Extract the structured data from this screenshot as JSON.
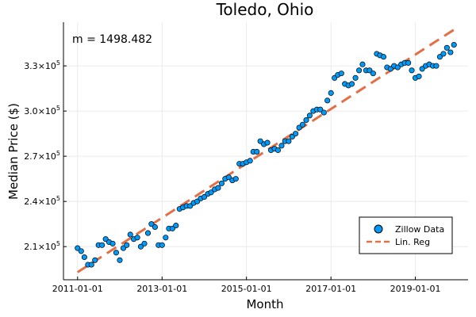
{
  "chart_data": {
    "type": "scatter",
    "title": "Toledo, Ohio",
    "xlabel": "Month",
    "ylabel": "Median Price ($)",
    "annotation": "m = 1498.482",
    "x_ticks": [
      "2011-01-01",
      "2013-01-01",
      "2015-01-01",
      "2017-01-01",
      "2019-01-01"
    ],
    "y_ticks": [
      {
        "value": 210000,
        "mantissa": "2.1",
        "exp": "5"
      },
      {
        "value": 240000,
        "mantissa": "2.4",
        "exp": "5"
      },
      {
        "value": 270000,
        "mantissa": "2.7",
        "exp": "5"
      },
      {
        "value": 300000,
        "mantissa": "3.0",
        "exp": "5"
      },
      {
        "value": 330000,
        "mantissa": "3.3",
        "exp": "5"
      }
    ],
    "times_sign": "×10",
    "xlim": [
      "2010-09-01",
      "2020-04-01"
    ],
    "ylim": [
      188000,
      359000
    ],
    "grid": true,
    "legend_position": "bottom-right",
    "colors": {
      "scatter": "#009AF9",
      "regression": "#E26F46"
    },
    "series": [
      {
        "name": "Zillow Data",
        "kind": "scatter",
        "x": [
          "2011-01-01",
          "2011-02-01",
          "2011-03-01",
          "2011-04-01",
          "2011-05-01",
          "2011-06-01",
          "2011-07-01",
          "2011-08-01",
          "2011-09-01",
          "2011-10-01",
          "2011-11-01",
          "2011-12-01",
          "2012-01-01",
          "2012-02-01",
          "2012-03-01",
          "2012-04-01",
          "2012-05-01",
          "2012-06-01",
          "2012-07-01",
          "2012-08-01",
          "2012-09-01",
          "2012-10-01",
          "2012-11-01",
          "2012-12-01",
          "2013-01-01",
          "2013-02-01",
          "2013-03-01",
          "2013-04-01",
          "2013-05-01",
          "2013-06-01",
          "2013-07-01",
          "2013-08-01",
          "2013-09-01",
          "2013-10-01",
          "2013-11-01",
          "2013-12-01",
          "2014-01-01",
          "2014-02-01",
          "2014-03-01",
          "2014-04-01",
          "2014-05-01",
          "2014-06-01",
          "2014-07-01",
          "2014-08-01",
          "2014-09-01",
          "2014-10-01",
          "2014-11-01",
          "2014-12-01",
          "2015-01-01",
          "2015-02-01",
          "2015-03-01",
          "2015-04-01",
          "2015-05-01",
          "2015-06-01",
          "2015-07-01",
          "2015-08-01",
          "2015-09-01",
          "2015-10-01",
          "2015-11-01",
          "2015-12-01",
          "2016-01-01",
          "2016-02-01",
          "2016-03-01",
          "2016-04-01",
          "2016-05-01",
          "2016-06-01",
          "2016-07-01",
          "2016-08-01",
          "2016-09-01",
          "2016-10-01",
          "2016-11-01",
          "2016-12-01",
          "2017-01-01",
          "2017-02-01",
          "2017-03-01",
          "2017-04-01",
          "2017-05-01",
          "2017-06-01",
          "2017-07-01",
          "2017-08-01",
          "2017-09-01",
          "2017-10-01",
          "2017-11-01",
          "2017-12-01",
          "2018-01-01",
          "2018-02-01",
          "2018-03-01",
          "2018-04-01",
          "2018-05-01",
          "2018-06-01",
          "2018-07-01",
          "2018-08-01",
          "2018-09-01",
          "2018-10-01",
          "2018-11-01",
          "2018-12-01",
          "2019-01-01",
          "2019-02-01",
          "2019-03-01",
          "2019-04-01",
          "2019-05-01",
          "2019-06-01",
          "2019-07-01",
          "2019-08-01",
          "2019-09-01",
          "2019-10-01",
          "2019-11-01",
          "2019-12-01"
        ],
        "y": [
          209000,
          207000,
          203000,
          198000,
          198000,
          201000,
          211000,
          211000,
          215000,
          213000,
          212000,
          206000,
          201000,
          209000,
          211000,
          218000,
          215000,
          216000,
          210000,
          212000,
          219000,
          225000,
          223000,
          211000,
          211000,
          216000,
          222000,
          222000,
          224000,
          235000,
          236000,
          237000,
          237000,
          239000,
          240000,
          242000,
          243000,
          245000,
          246000,
          248000,
          249000,
          252000,
          255000,
          256000,
          254000,
          255000,
          265000,
          265000,
          266000,
          267000,
          273000,
          273000,
          280000,
          278000,
          279000,
          274000,
          275000,
          274000,
          277000,
          280000,
          280000,
          283000,
          285000,
          289000,
          291000,
          294000,
          297000,
          300000,
          301000,
          301000,
          299000,
          307000,
          312000,
          322000,
          324000,
          325000,
          318000,
          317000,
          318000,
          322000,
          327000,
          331000,
          327000,
          327000,
          325000,
          338000,
          337000,
          336000,
          329000,
          328000,
          330000,
          329000,
          331000,
          332000,
          332000,
          327000,
          322000,
          323000,
          328000,
          330000,
          331000,
          330000,
          330000,
          336000,
          338000,
          342000,
          339000,
          344000
        ]
      },
      {
        "name": "Lin. Reg",
        "kind": "line",
        "x": [
          "2011-01-01",
          "2019-12-01"
        ],
        "y": [
          193000,
          354000
        ]
      }
    ]
  }
}
